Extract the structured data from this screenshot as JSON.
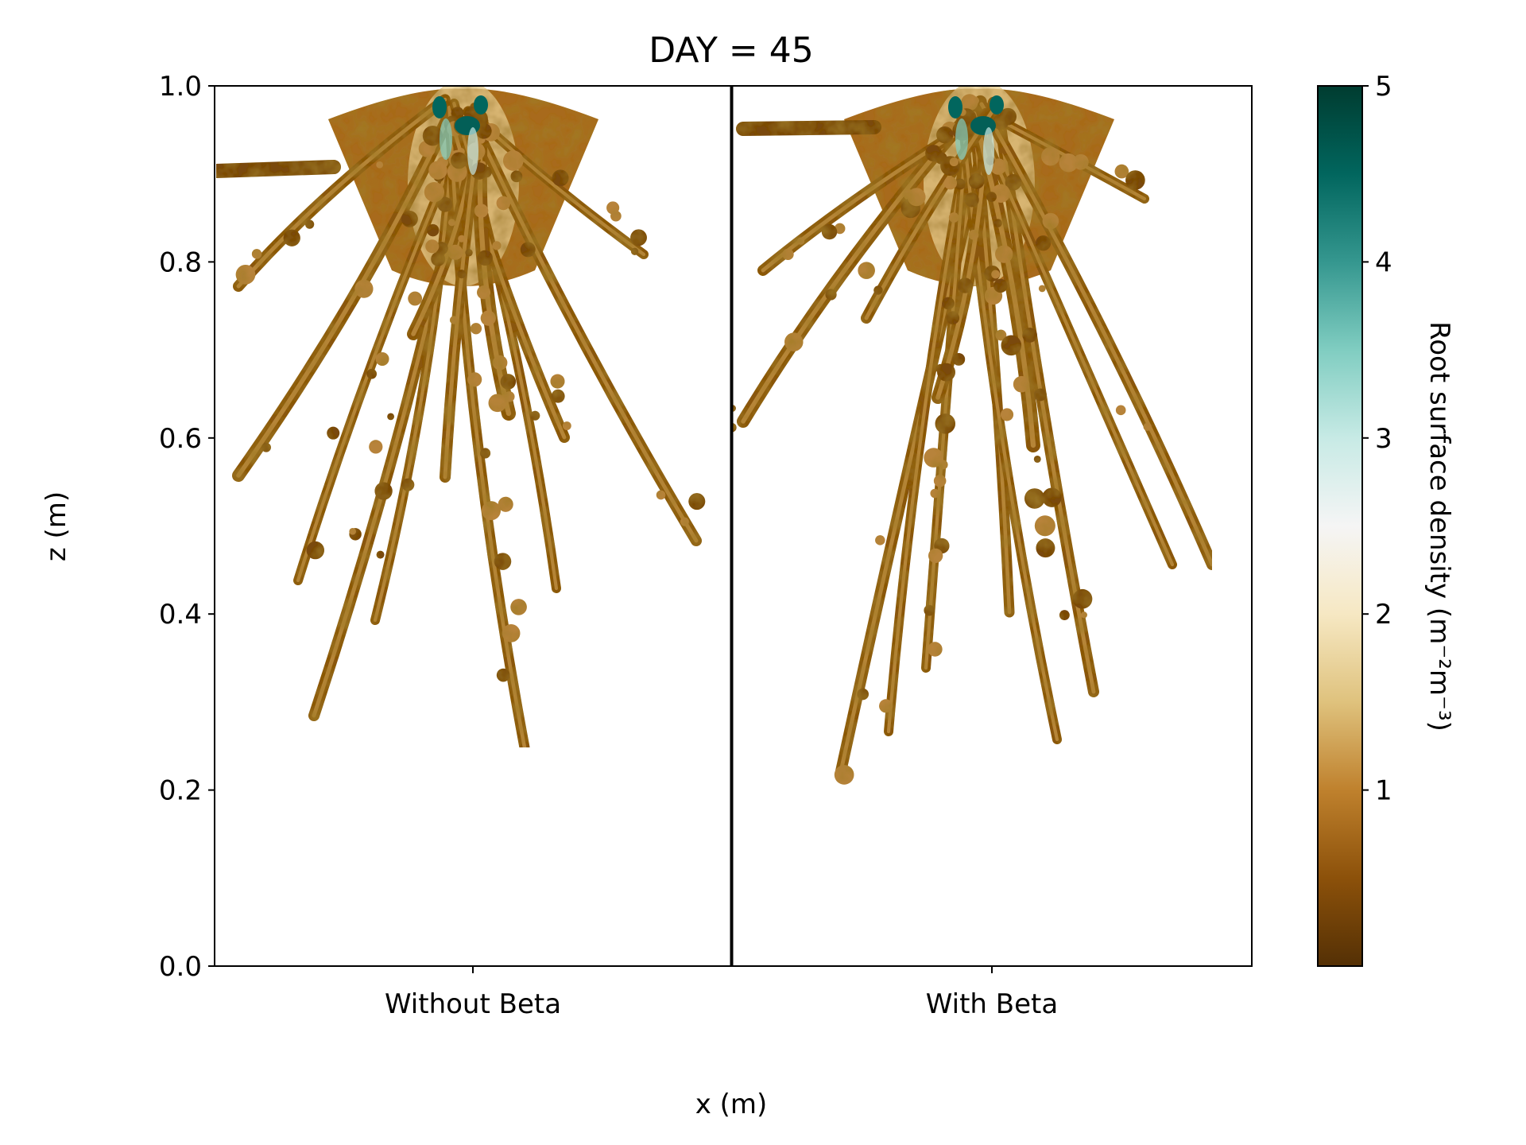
{
  "chart_data": {
    "type": "heatmap",
    "title": "DAY = 45",
    "xlabel": "x (m)",
    "ylabel": "z (m)",
    "ylim": [
      0.0,
      1.0
    ],
    "yticks": [
      "0.0",
      "0.2",
      "0.4",
      "0.6",
      "0.8",
      "1.0"
    ],
    "panels": [
      {
        "name": "Without Beta"
      },
      {
        "name": "With Beta"
      }
    ],
    "colorbar": {
      "label": "Root surface density (m⁻²m⁻³)",
      "range": [
        0,
        5
      ],
      "ticks": [
        "1",
        "2",
        "3",
        "4",
        "5"
      ],
      "colormap": "BrBG",
      "colors": [
        "#543005",
        "#8c510a",
        "#bf812d",
        "#dfc27d",
        "#f6e8c3",
        "#f5f5f5",
        "#c7eae5",
        "#80cdc1",
        "#35978f",
        "#01665e",
        "#003c30"
      ]
    },
    "grid": false,
    "legend": "none"
  }
}
